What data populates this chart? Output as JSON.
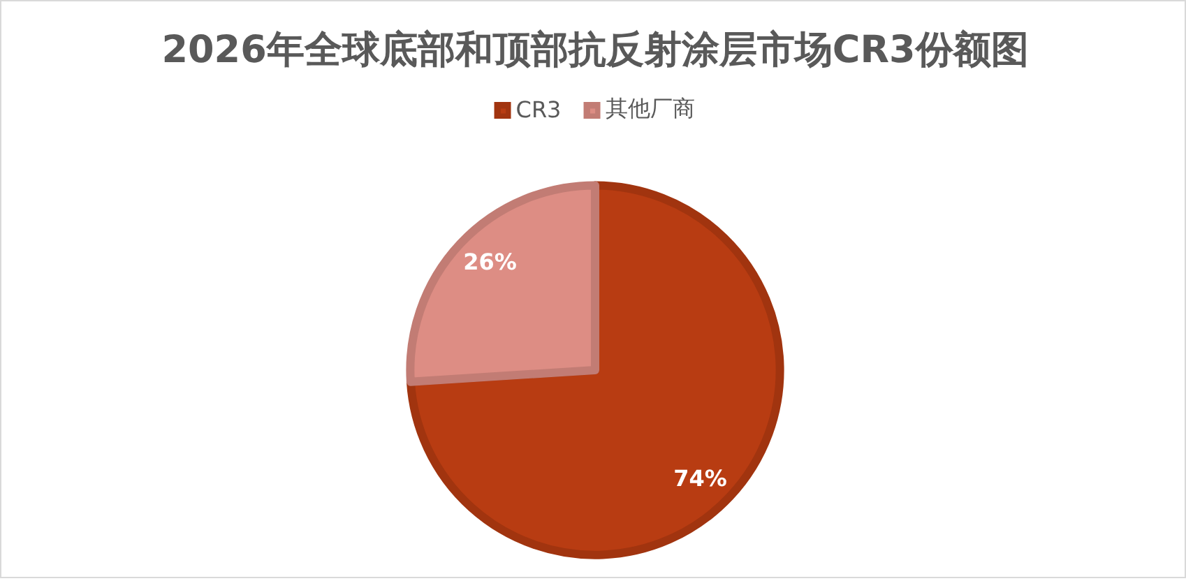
{
  "chart_data": {
    "type": "pie",
    "title": "2026年全球底部和顶部抗反射涂层市场CR3份额图",
    "categories": [
      "CR3",
      "其他厂商"
    ],
    "values": [
      74,
      26
    ],
    "colors": [
      "#b83c12",
      "#dd8d84"
    ],
    "value_labels": [
      "74%",
      "26%"
    ],
    "legend": "top"
  }
}
